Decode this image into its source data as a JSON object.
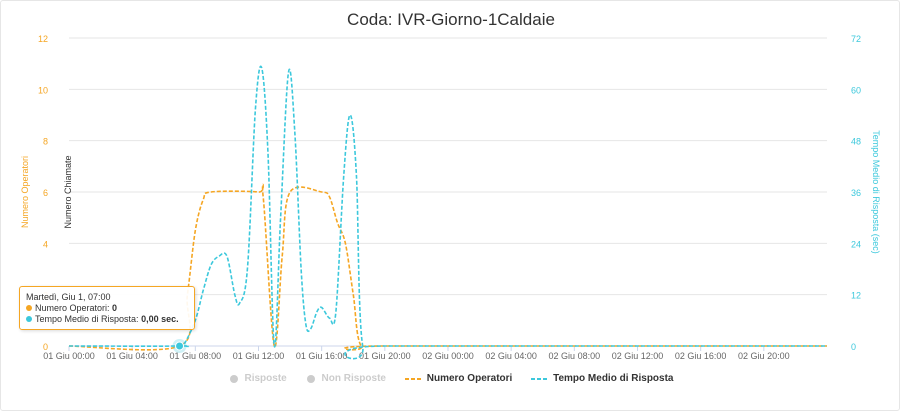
{
  "chart_data": {
    "type": "line",
    "title": "Coda: IVR-Giorno-1Caldaie",
    "y_left_label": "Numero Operatori",
    "y_left_ticks": [
      "0",
      "2",
      "4",
      "6",
      "8",
      "10",
      "12"
    ],
    "y_left_range": [
      0,
      12
    ],
    "y_left_color": "#f5a623",
    "y_mid_label": "Numero Chiamate",
    "y_right_label": "Tempo Medio di Risposta (sec)",
    "y_right_ticks": [
      "0",
      "12",
      "24",
      "36",
      "48",
      "60",
      "72"
    ],
    "y_right_range": [
      0,
      72
    ],
    "y_right_color": "#3cc8dc",
    "x_range_hours": [
      0,
      48
    ],
    "x_ticks": [
      {
        "h": 0,
        "label": "01 Giu 00:00"
      },
      {
        "h": 4,
        "label": "01 Giu 04:00"
      },
      {
        "h": 8,
        "label": "01 Giu 08:00"
      },
      {
        "h": 12,
        "label": "01 Giu 12:00"
      },
      {
        "h": 16,
        "label": "01 Giu 16:00"
      },
      {
        "h": 20,
        "label": "01 Giu 20:00"
      },
      {
        "h": 24,
        "label": "02 Giu 00:00"
      },
      {
        "h": 28,
        "label": "02 Giu 04:00"
      },
      {
        "h": 32,
        "label": "02 Giu 08:00"
      },
      {
        "h": 36,
        "label": "02 Giu 12:00"
      },
      {
        "h": 40,
        "label": "02 Giu 16:00"
      },
      {
        "h": 44,
        "label": "02 Giu 20:00"
      }
    ],
    "series": [
      {
        "name": "Numero Operatori",
        "axis": "left",
        "color": "#f5a623",
        "dash": true,
        "points": [
          [
            0,
            0
          ],
          [
            7,
            0
          ],
          [
            7.5,
            2
          ],
          [
            8,
            4.5
          ],
          [
            8.5,
            5.7
          ],
          [
            9,
            6
          ],
          [
            12,
            6
          ],
          [
            12.3,
            5.8
          ],
          [
            13,
            0
          ],
          [
            13.5,
            3.5
          ],
          [
            14,
            6
          ],
          [
            16,
            6
          ],
          [
            16.5,
            5.8
          ],
          [
            17,
            4.8
          ],
          [
            17.5,
            4
          ],
          [
            18,
            2
          ],
          [
            18.5,
            0
          ],
          [
            20,
            0
          ],
          [
            48,
            0
          ]
        ]
      },
      {
        "name": "Tempo Medio di Risposta",
        "axis": "right",
        "color": "#3cc8dc",
        "dash": true,
        "points": [
          [
            0,
            0
          ],
          [
            7,
            0
          ],
          [
            7.3,
            0.5
          ],
          [
            8,
            6
          ],
          [
            8.5,
            13
          ],
          [
            9,
            19
          ],
          [
            9.5,
            21
          ],
          [
            10,
            21
          ],
          [
            10.5,
            12
          ],
          [
            10.8,
            10
          ],
          [
            11.3,
            18
          ],
          [
            11.8,
            55
          ],
          [
            12.2,
            65
          ],
          [
            12.6,
            45
          ],
          [
            13,
            0
          ],
          [
            13.4,
            30
          ],
          [
            13.9,
            64
          ],
          [
            14.3,
            50
          ],
          [
            14.7,
            18
          ],
          [
            15,
            5
          ],
          [
            15.3,
            4
          ],
          [
            15.7,
            8
          ],
          [
            16,
            9
          ],
          [
            16.5,
            6.5
          ],
          [
            16.9,
            8
          ],
          [
            17.4,
            40
          ],
          [
            17.8,
            54
          ],
          [
            18.2,
            40
          ],
          [
            18.6,
            0
          ],
          [
            20,
            0
          ],
          [
            48,
            0
          ]
        ]
      },
      {
        "name": "Risposte",
        "axis": "mid",
        "color": "#cccccc",
        "hidden": true,
        "points": []
      },
      {
        "name": "Non Risposte",
        "axis": "mid",
        "color": "#cccccc",
        "hidden": true,
        "points": []
      }
    ],
    "highlight_point": {
      "h": 7
    },
    "grid": true
  },
  "tooltip": {
    "header": "Martedì, Giu 1, 07:00",
    "row1_label": "Numero Operatori: ",
    "row1_value": "0",
    "row2_label": "Tempo Medio di Risposta: ",
    "row2_value": "0,00 sec."
  },
  "legend": [
    {
      "label": "Risposte",
      "symbol": "dot",
      "hidden": true
    },
    {
      "label": "Non Risposte",
      "symbol": "dot",
      "hidden": true
    },
    {
      "label": "Numero Operatori",
      "symbol": "dash",
      "color": "#f5a623",
      "hidden": false
    },
    {
      "label": "Tempo Medio di Risposta",
      "symbol": "dash",
      "color": "#3cc8dc",
      "hidden": false
    }
  ]
}
